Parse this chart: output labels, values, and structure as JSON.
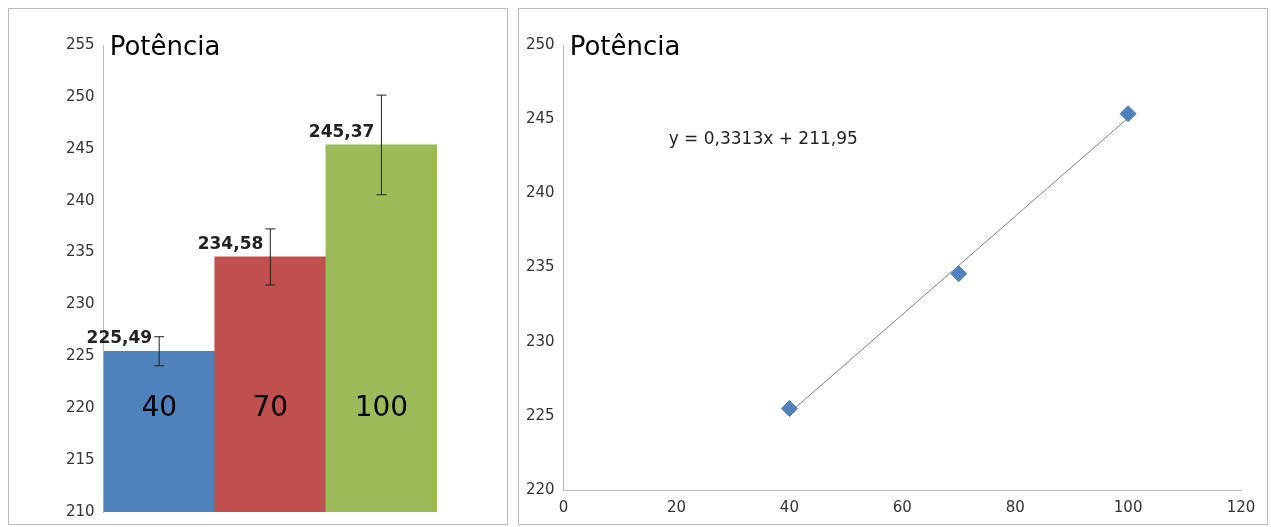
{
  "chart_data": [
    {
      "type": "bar",
      "title": "Potência",
      "categories": [
        "40",
        "70",
        "100"
      ],
      "values": [
        225.49,
        234.58,
        245.37
      ],
      "colors": [
        "#4f81bd",
        "#c0504d",
        "#9bbb59"
      ],
      "errors": [
        1.4,
        2.7,
        4.8
      ],
      "value_labels": [
        "225,49",
        "234,58",
        "245,37"
      ],
      "ylim": [
        210,
        255
      ],
      "yticks": [
        210,
        215,
        220,
        225,
        230,
        235,
        240,
        245,
        250,
        255
      ],
      "grid": false,
      "legend": false
    },
    {
      "type": "scatter",
      "title": "Potência",
      "xlim": [
        0,
        120
      ],
      "xticks": [
        0,
        20,
        40,
        60,
        80,
        100,
        120
      ],
      "ylim": [
        220,
        250
      ],
      "yticks": [
        220,
        225,
        230,
        235,
        240,
        245,
        250
      ],
      "grid": false,
      "legend": false,
      "series": [
        {
          "type": "scatter",
          "marker": "diamond",
          "color": "#4f81bd",
          "x": [
            40,
            70,
            100
          ],
          "values": [
            225.49,
            234.58,
            245.37
          ]
        },
        {
          "type": "line",
          "marker": "none",
          "color": "#7f7f7f",
          "x": [
            40,
            100
          ],
          "values": [
            225.2,
            245.08
          ]
        }
      ],
      "annotations": [
        "y = 0,3313x + 211,95"
      ]
    }
  ]
}
